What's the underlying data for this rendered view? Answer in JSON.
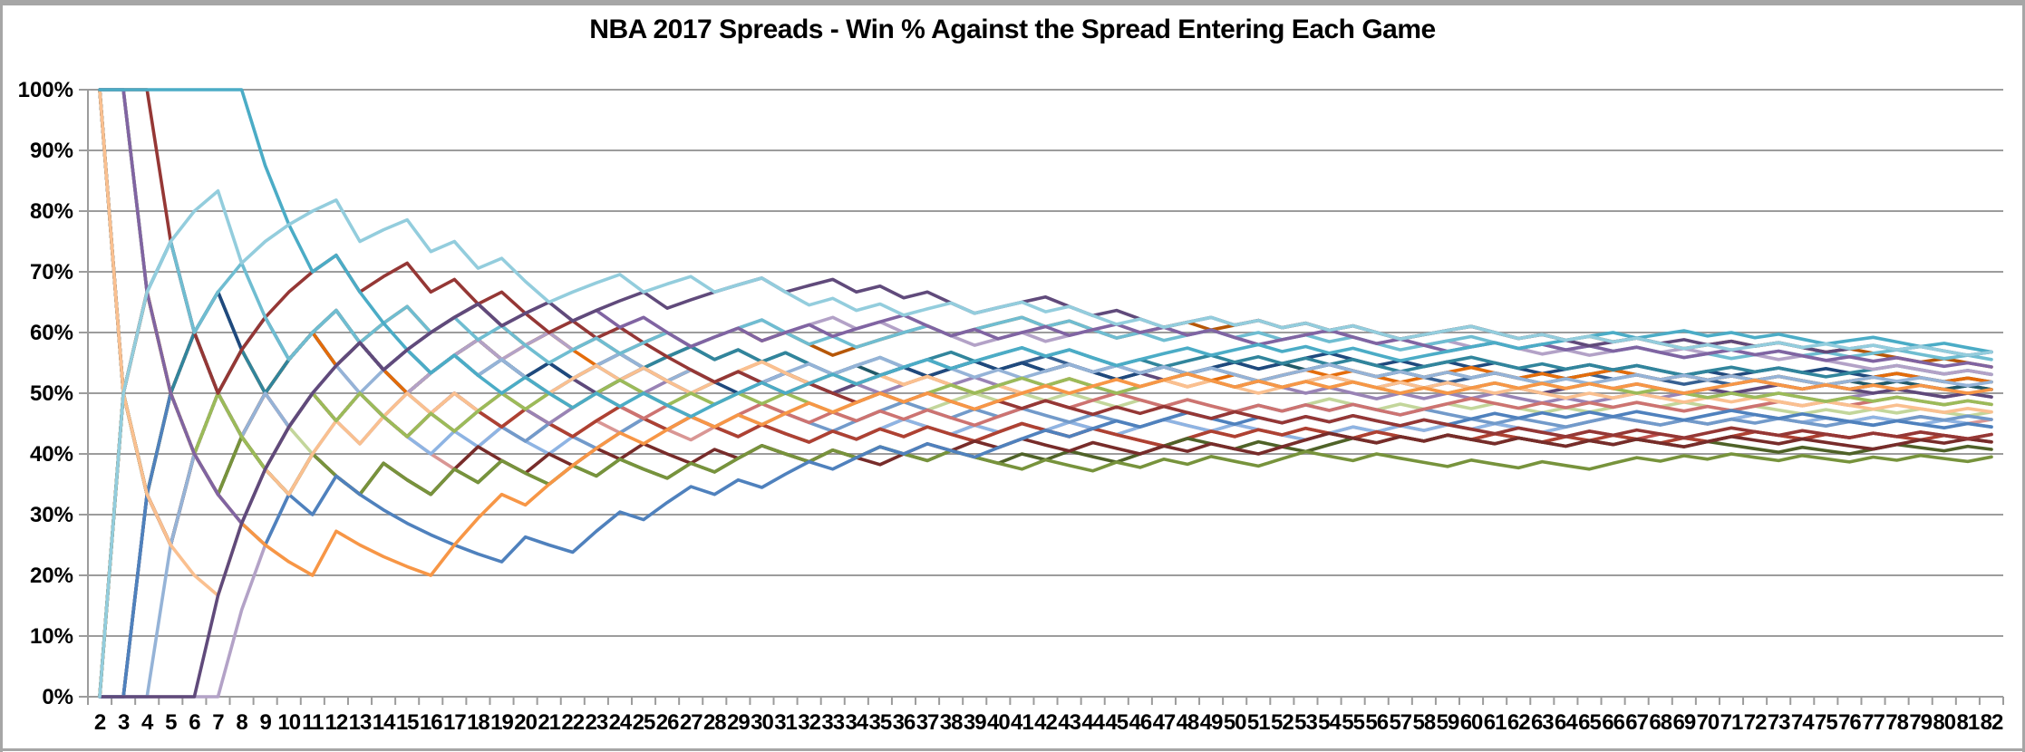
{
  "chart_data": {
    "type": "line",
    "title": "NBA 2017 Spreads - Win % Against the Spread Entering Each Game",
    "legend": "none",
    "grid": "horizontal",
    "x_axis": {
      "tick_labels": [
        2,
        3,
        4,
        5,
        6,
        7,
        8,
        9,
        10,
        11,
        12,
        13,
        14,
        15,
        16,
        17,
        18,
        19,
        20,
        21,
        22,
        23,
        24,
        25,
        26,
        27,
        28,
        29,
        30,
        31,
        32,
        33,
        34,
        35,
        36,
        37,
        38,
        39,
        40,
        41,
        42,
        43,
        44,
        45,
        46,
        47,
        48,
        49,
        50,
        51,
        52,
        53,
        54,
        55,
        56,
        57,
        58,
        59,
        60,
        61,
        62,
        63,
        64,
        65,
        66,
        67,
        68,
        69,
        70,
        71,
        72,
        73,
        74,
        75,
        76,
        77,
        78,
        79,
        80,
        81,
        82
      ]
    },
    "y_axis": {
      "min": 0,
      "max": 100,
      "format": "percent",
      "tick_labels": [
        "0%",
        "10%",
        "20%",
        "30%",
        "40%",
        "50%",
        "60%",
        "70%",
        "80%",
        "90%",
        "100%"
      ]
    },
    "value_rule": "each point = cumulative ATS wins / games played entering that game, from per-game results string (W=win, L=loss)",
    "series": [
      {
        "id": "s01",
        "color": "#C0504D",
        "results": "LWWLWLLWL WLWLLW WLLWLL WWLLWL LWLLWL WLWLLW WLLWLL LWWLWL WLLWLL WLWLLW WLLWLL WWLLWL WLWLLW"
      },
      {
        "id": "s02",
        "color": "#D99694",
        "results": "WLLWLWLLW WLLWLL LWWLWL WLWLLW LWLLWL WWLLWL WLWLLW WLLWLL LWWLWL WLWLLW WWLLWL WWLLWL WLWLLW"
      },
      {
        "id": "s03",
        "color": "#C3D69B",
        "results": "LLWWLWWLL LWWLWL WLWLLW WWLLWL WLLWLL WWLWWL WLWLLW LWLLWL WWLLWL WLWLLW LWWLWL LWLLWL WLWLLW"
      },
      {
        "id": "s04",
        "color": "#8EB4E3",
        "results": "LLWLWLWWL WLLWLL WLWLLW LWWLWL LWLLWL WWLLWL WLWLLW WLLWLL LWWLWL WLWLLW WWLLWL WWLLWL WLLWLL"
      },
      {
        "id": "s05",
        "color": "#729ACA",
        "results": "LWWLLWLWL WLWLLW LWLLWL LWWLWL WLWLLW WWLLWL WLLWLL WWLWWL WLWLLW LLLWLL WWLLWL WLWLLW LWWLWL"
      },
      {
        "id": "s06",
        "color": "#AE4132",
        "results": "LLWWLLWLW WLWLLW WLLWLL WWLLWL LWLLWL WLWLLW WLLWLL LWWLWL WLLWLL WLWLLW LWLLWL WWLLWL WLLWLL"
      },
      {
        "id": "s07",
        "color": "#4F6228",
        "results": "WLLWLLWLL WLLWLL WLWLLW LWLLWL WWLLWL WLLWLL WLWLLW WWLLWL LWWLWL WLLWLL WLWLLW LLLWLL WWLLWL"
      },
      {
        "id": "s08",
        "color": "#772C2A",
        "results": "WWLLWLLLL WLLWLL WWLLWL WLWLLW LWLLWL LWWLWL WLLWLL WLWLLW WWLLWL WLLWLL WLWLLW WLLWLL LWWLWL"
      },
      {
        "id": "s09",
        "color": "#9983B5",
        "results": "LWLLWWWLL WWLLWL WLWLLW WWLWWL WLWLLW LWWLWL WLWLLW WWLLWL LWLLWL WLWLLW LWWLWL WLWLLW WWLLWL"
      },
      {
        "id": "s10",
        "color": "#376092",
        "results": "LLWLWWLWW WLWLLW WWLLWL LWWLWL WLWLLW WWLWWL WWLLWL WLWLLW WWLLWL LWWLWL WLWLLW LWLLWL WWLLWL"
      },
      {
        "id": "s11",
        "color": "#5F497A",
        "results": "WLLLWWLWW WWLLWL WLWLLW LWWLWL WLWLLW WWLWWL WLWLLW LWLLWL WWLLWL WLWLLW WLWLLW LWWLWL LWLLWL"
      },
      {
        "id": "s12",
        "color": "#215968",
        "results": "LWWLWWLLW WLWLLW WWLLWL WWLWWL WLWLLW LWWLWL WLWLLW WLWWLW LWLLWL WLWLLW WWLLWL WLWLLW LWLLWL"
      },
      {
        "id": "s13",
        "color": "#1F497D",
        "results": "WLWWLWLWL WLWLLW WWLLWL WLWLLW LWWLWL WWLWWL WLWLLW WLWWLW WWLLWL WLWLLW WLWLLW LWWLWL LWLLWL"
      },
      {
        "id": "s14",
        "color": "#CD7371",
        "results": "LWLWWLLWL WLWLLW LWWLWL WLLWLL WWLLWL WLWLLW WWLWWL LWLLWL WLWLLW WWLLWL WLWLLW LWWLWL WWLLWL"
      },
      {
        "id": "s15",
        "color": "#E46C0A",
        "results": "WLWLLWWLW WLWLLW WWLWWL LWLLWL WWLLWL WLWLLW LWWLWL WLWWLW WLWLLW WWLLWL WWLLWL WLWLLW WWLLWL"
      },
      {
        "id": "s16",
        "color": "#B65708",
        "results": "LWLLWWLWW WWLWWL WWLLWL WLWWLW WLWLLW WWWLWW WLWLLW WWLWWL WLWLLW WWLLWL WLWLLW WLWLLW LLLWLL"
      },
      {
        "id": "s17",
        "color": "#31859C",
        "results": "WLLWWLWLW WWLLWL WLWLLW WWLWWL WLWLLW WLWWLW WLWLLW LWWLWL WLWLLW WWLLWL WLWLLW WLWLLW WWLLWL"
      },
      {
        "id": "s18",
        "color": "#B3A2C7",
        "results": "LLLLLLWWW WWWLWW WWLWWL WLWWLW WWLWWL WLWLLW WLWWLW WLWLLW WWLLWL WLWLLW LWWLWL WLLWLL LWLLWL"
      },
      {
        "id": "s19",
        "color": "#77933C",
        "results": "LWLWLLWLL WLLWLL WLWLLW LWLLWL WWLLWL WLLWLL LWLLWL WLWLLW WLLWLL LWLLWL LWWLWL WLLWLL WLWLLW"
      },
      {
        "id": "s20",
        "color": "#4F81BD",
        "results": "LLWWLLLLW LWLLLL LLLWLL WWLWWL WLWWLW WLWLLW WWLWWL WWLLWL WLWLLW LWWLWL WLWLLW WLLWLL LWLLWL"
      },
      {
        "id": "s21",
        "color": "#95B3D7",
        "results": "LLLWWWLWL WWLWWL WLWLLW WWLLWL WLWWLW WLWLLW LWWLWL WLWLLW WWLLWL WLWLLW LWWLWL WLWLLW WLWLLW"
      },
      {
        "id": "s22",
        "color": "#FAC090",
        "results": "WLLLLLWWL WWLWWL WLWWLW WLWLLW WWLLWL WLWLLW LWWLWL WLWLLW WWLLWL WLLWLL WLWLLW LWLLWL LWLLWL"
      },
      {
        "id": "s23",
        "color": "#9BBB59",
        "results": "WWLLLWLLW WLWLLW LWWLWL WWLLWL WLWLLW WLWWLW WLWLLW WWLLWL WLWLLW LWWLWL WLLWLL WLWLLW LWLLWL"
      },
      {
        "id": "s24",
        "color": "#953735",
        "results": "WWWLLLWWW WWLWWL WLWLLW LWLLLL WLLWLL WLWLLW LWLLWL WLLWLL WLWLLW LLLWLL WLWLLW WLLWLL WLWLLW"
      },
      {
        "id": "s25",
        "color": "#F79646",
        "results": "WWLLLLLLL LWLLLL WWWLWW WWLWWL WLWWLW WLWLLW WWLWWL WWLLWL WLWLLW LWWLWL WLWLLW WWLLWL WLWLLW"
      },
      {
        "id": "s26",
        "color": "#6FBDD1",
        "results": "WWLWLWWLL WWLWWL WLWLLW WLWWLW WWLLWL WWWLWW WLWLLW LWWLWL WLWLLW WWLLWL WLWLLW LWWLWL WWLLWL"
      },
      {
        "id": "s27",
        "color": "#8064A2",
        "results": "WWLLLLLWW WWWLWW WWLWWL WLWLLW WLWWLW WWLLWL WWLWWL WLWLLW WWLLWL LWWLWL WLWLLW WLWLLW LWLLWL"
      },
      {
        "id": "s28",
        "color": "#4BACC6",
        "results": "WWWWWWWLL LWLLLL WLLWLL WLWLLW WWLWWL WWWLWW WLWLLW WWLWWL WLWLLW WWWLWW WWLWWL WLWLLW WLLWLL"
      },
      {
        "id": "s29",
        "color": "#604A7B",
        "results": "LLLLLWWWW WWWLWW WWLWWL WWWLWW WWLWWL WLWLLW WWLLWL LWWLWL WLWLLW WWLLWL LWWLWL WLWLLW WLWLLW"
      },
      {
        "id": "s30",
        "color": "#93CDDD",
        "results": "LWWWWWLWW WWLWWL WLWLLW WWLWWL WWLLWL WLWWLW WLWLLW LWWLWL WLWLLW WWLLWL WLWLLW LWWLWL WLWLLW"
      }
    ]
  },
  "styles": {
    "background": "#FFFFFF",
    "border_color": "#A6A6A6",
    "grid_color": "#9C9C9C",
    "axis_color": "#9C9C9C",
    "text_color": "#000000"
  }
}
